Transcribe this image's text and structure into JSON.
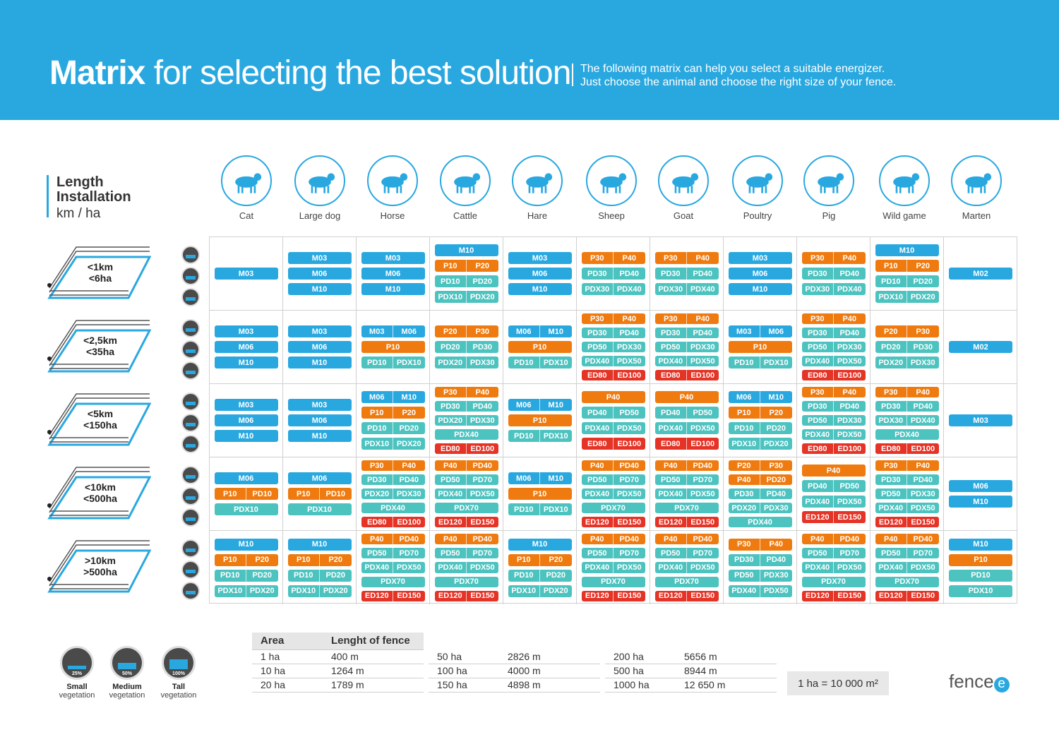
{
  "header": {
    "title_bold": "Matrix",
    "title_rest": " for selecting the best solution",
    "desc_line1": "The following matrix can help you select a suitable energizer.",
    "desc_line2": "Just choose the animal and choose the right size of your fence."
  },
  "length_header": {
    "line1": "Length",
    "line2": "Installation",
    "unit": "km / ha"
  },
  "animals": [
    "Cat",
    "Large dog",
    "Horse",
    "Cattle",
    "Hare",
    "Sheep",
    "Goat",
    "Poultry",
    "Pig",
    "Wild game",
    "Marten"
  ],
  "rows": [
    {
      "km": "<1km",
      "ha": "<6ha"
    },
    {
      "km": "<2,5km",
      "ha": "<35ha"
    },
    {
      "km": "<5km",
      "ha": "<150ha"
    },
    {
      "km": "<10km",
      "ha": "<500ha"
    },
    {
      "km": ">10km",
      "ha": ">500ha"
    }
  ],
  "vegetation_icon_labels": [
    "25%",
    "50%",
    "100%"
  ],
  "colors": {
    "blue": "#29a8e0",
    "orange": "#ef7b10",
    "teal": "#4dc3c0",
    "red": "#e53326"
  },
  "matrix": [
    [
      [
        [
          "b",
          "M03"
        ]
      ],
      [
        [
          "b",
          "M03"
        ],
        [
          "b",
          "M06"
        ],
        [
          "b",
          "M10"
        ]
      ],
      [
        [
          "b",
          "M03"
        ],
        [
          "b",
          "M06"
        ],
        [
          "b",
          "M10"
        ]
      ],
      [
        [
          "b",
          "M10"
        ],
        [
          "o",
          "P10",
          "P20"
        ],
        [
          "t",
          "PD10",
          "PD20"
        ],
        [
          "t",
          "PDX10",
          "PDX20"
        ]
      ],
      [
        [
          "b",
          "M03"
        ],
        [
          "b",
          "M06"
        ],
        [
          "b",
          "M10"
        ]
      ],
      [
        [
          "o",
          "P30",
          "P40"
        ],
        [
          "t",
          "PD30",
          "PD40"
        ],
        [
          "t",
          "PDX30",
          "PDX40"
        ]
      ],
      [
        [
          "o",
          "P30",
          "P40"
        ],
        [
          "t",
          "PD30",
          "PD40"
        ],
        [
          "t",
          "PDX30",
          "PDX40"
        ]
      ],
      [
        [
          "b",
          "M03"
        ],
        [
          "b",
          "M06"
        ],
        [
          "b",
          "M10"
        ]
      ],
      [
        [
          "o",
          "P30",
          "P40"
        ],
        [
          "t",
          "PD30",
          "PD40"
        ],
        [
          "t",
          "PDX30",
          "PDX40"
        ]
      ],
      [
        [
          "b",
          "M10"
        ],
        [
          "o",
          "P10",
          "P20"
        ],
        [
          "t",
          "PD10",
          "PD20"
        ],
        [
          "t",
          "PDX10",
          "PDX20"
        ]
      ],
      [
        [
          "b",
          "M02"
        ]
      ]
    ],
    [
      [
        [
          "b",
          "M03"
        ],
        [
          "b",
          "M06"
        ],
        [
          "b",
          "M10"
        ]
      ],
      [
        [
          "b",
          "M03"
        ],
        [
          "b",
          "M06"
        ],
        [
          "b",
          "M10"
        ]
      ],
      [
        [
          "b",
          "M03",
          "M06"
        ],
        [
          "o",
          "P10"
        ],
        [
          "t",
          "PD10",
          "PDX10"
        ]
      ],
      [
        [
          "o",
          "P20",
          "P30"
        ],
        [
          "t",
          "PD20",
          "PD30"
        ],
        [
          "t",
          "PDX20",
          "PDX30"
        ]
      ],
      [
        [
          "b",
          "M06",
          "M10"
        ],
        [
          "o",
          "P10"
        ],
        [
          "t",
          "PD10",
          "PDX10"
        ]
      ],
      [
        [
          "o",
          "P30",
          "P40"
        ],
        [
          "t",
          "PD30",
          "PD40"
        ],
        [
          "t",
          "PD50",
          "PDX30"
        ],
        [
          "t",
          "PDX40",
          "PDX50"
        ],
        [
          "r",
          "ED80",
          "ED100"
        ]
      ],
      [
        [
          "o",
          "P30",
          "P40"
        ],
        [
          "t",
          "PD30",
          "PD40"
        ],
        [
          "t",
          "PD50",
          "PDX30"
        ],
        [
          "t",
          "PDX40",
          "PDX50"
        ],
        [
          "r",
          "ED80",
          "ED100"
        ]
      ],
      [
        [
          "b",
          "M03",
          "M06"
        ],
        [
          "o",
          "P10"
        ],
        [
          "t",
          "PD10",
          "PDX10"
        ]
      ],
      [
        [
          "o",
          "P30",
          "P40"
        ],
        [
          "t",
          "PD30",
          "PD40"
        ],
        [
          "t",
          "PD50",
          "PDX30"
        ],
        [
          "t",
          "PDX40",
          "PDX50"
        ],
        [
          "r",
          "ED80",
          "ED100"
        ]
      ],
      [
        [
          "o",
          "P20",
          "P30"
        ],
        [
          "t",
          "PD20",
          "PD30"
        ],
        [
          "t",
          "PDX20",
          "PDX30"
        ]
      ],
      [
        [
          "b",
          "M02"
        ]
      ]
    ],
    [
      [
        [
          "b",
          "M03"
        ],
        [
          "b",
          "M06"
        ],
        [
          "b",
          "M10"
        ]
      ],
      [
        [
          "b",
          "M03"
        ],
        [
          "b",
          "M06"
        ],
        [
          "b",
          "M10"
        ]
      ],
      [
        [
          "b",
          "M06",
          "M10"
        ],
        [
          "o",
          "P10",
          "P20"
        ],
        [
          "t",
          "PD10",
          "PD20"
        ],
        [
          "t",
          "PDX10",
          "PDX20"
        ]
      ],
      [
        [
          "o",
          "P30",
          "P40"
        ],
        [
          "t",
          "PD30",
          "PD40"
        ],
        [
          "t",
          "PDX20",
          "PDX30"
        ],
        [
          "t",
          "PDX40"
        ],
        [
          "r",
          "ED80",
          "ED100"
        ]
      ],
      [
        [
          "b",
          "M06",
          "M10"
        ],
        [
          "o",
          "P10"
        ],
        [
          "t",
          "PD10",
          "PDX10"
        ]
      ],
      [
        [
          "o",
          "P40"
        ],
        [
          "t",
          "PD40",
          "PD50"
        ],
        [
          "t",
          "PDX40",
          "PDX50"
        ],
        [
          "r",
          "ED80",
          "ED100"
        ]
      ],
      [
        [
          "o",
          "P40"
        ],
        [
          "t",
          "PD40",
          "PD50"
        ],
        [
          "t",
          "PDX40",
          "PDX50"
        ],
        [
          "r",
          "ED80",
          "ED100"
        ]
      ],
      [
        [
          "b",
          "M06",
          "M10"
        ],
        [
          "o",
          "P10",
          "P20"
        ],
        [
          "t",
          "PD10",
          "PD20"
        ],
        [
          "t",
          "PDX10",
          "PDX20"
        ]
      ],
      [
        [
          "o",
          "P30",
          "P40"
        ],
        [
          "t",
          "PD30",
          "PD40"
        ],
        [
          "t",
          "PD50",
          "PDX30"
        ],
        [
          "t",
          "PDX40",
          "PDX50"
        ],
        [
          "r",
          "ED80",
          "ED100"
        ]
      ],
      [
        [
          "o",
          "P30",
          "P40"
        ],
        [
          "t",
          "PD30",
          "PD40"
        ],
        [
          "t",
          "PDX30",
          "PDX40"
        ],
        [
          "t",
          "PDX40"
        ],
        [
          "r",
          "ED80",
          "ED100"
        ]
      ],
      [
        [
          "b",
          "M03"
        ]
      ]
    ],
    [
      [
        [
          "b",
          "M06"
        ],
        [
          "o",
          "P10",
          "PD10"
        ],
        [
          "t",
          "PDX10"
        ]
      ],
      [
        [
          "b",
          "M06"
        ],
        [
          "o",
          "P10",
          "PD10"
        ],
        [
          "t",
          "PDX10"
        ]
      ],
      [
        [
          "o",
          "P30",
          "P40"
        ],
        [
          "t",
          "PD30",
          "PD40"
        ],
        [
          "t",
          "PDX20",
          "PDX30"
        ],
        [
          "t",
          "PDX40"
        ],
        [
          "r",
          "ED80",
          "ED100"
        ]
      ],
      [
        [
          "o",
          "P40",
          "PD40"
        ],
        [
          "t",
          "PD50",
          "PD70"
        ],
        [
          "t",
          "PDX40",
          "PDX50"
        ],
        [
          "t",
          "PDX70"
        ],
        [
          "r",
          "ED120",
          "ED150"
        ]
      ],
      [
        [
          "b",
          "M06",
          "M10"
        ],
        [
          "o",
          "P10"
        ],
        [
          "t",
          "PD10",
          "PDX10"
        ]
      ],
      [
        [
          "o",
          "P40",
          "PD40"
        ],
        [
          "t",
          "PD50",
          "PD70"
        ],
        [
          "t",
          "PDX40",
          "PDX50"
        ],
        [
          "t",
          "PDX70"
        ],
        [
          "r",
          "ED120",
          "ED150"
        ]
      ],
      [
        [
          "o",
          "P40",
          "PD40"
        ],
        [
          "t",
          "PD50",
          "PD70"
        ],
        [
          "t",
          "PDX40",
          "PDX50"
        ],
        [
          "t",
          "PDX70"
        ],
        [
          "r",
          "ED120",
          "ED150"
        ]
      ],
      [
        [
          "o",
          "P20",
          "P30"
        ],
        [
          "o",
          "P40",
          "PD20"
        ],
        [
          "t",
          "PD30",
          "PD40"
        ],
        [
          "t",
          "PDX20",
          "PDX30"
        ],
        [
          "t",
          "PDX40"
        ]
      ],
      [
        [
          "o",
          "P40"
        ],
        [
          "t",
          "PD40",
          "PD50"
        ],
        [
          "t",
          "PDX40",
          "PDX50"
        ],
        [
          "r",
          "ED120",
          "ED150"
        ]
      ],
      [
        [
          "o",
          "P30",
          "P40"
        ],
        [
          "t",
          "PD30",
          "PD40"
        ],
        [
          "t",
          "PD50",
          "PDX30"
        ],
        [
          "t",
          "PDX40",
          "PDX50"
        ],
        [
          "r",
          "ED120",
          "ED150"
        ]
      ],
      [
        [
          "b",
          "M06"
        ],
        [
          "b",
          "M10"
        ]
      ]
    ],
    [
      [
        [
          "b",
          "M10"
        ],
        [
          "o",
          "P10",
          "P20"
        ],
        [
          "t",
          "PD10",
          "PD20"
        ],
        [
          "t",
          "PDX10",
          "PDX20"
        ]
      ],
      [
        [
          "b",
          "M10"
        ],
        [
          "o",
          "P10",
          "P20"
        ],
        [
          "t",
          "PD10",
          "PD20"
        ],
        [
          "t",
          "PDX10",
          "PDX20"
        ]
      ],
      [
        [
          "o",
          "P40",
          "PD40"
        ],
        [
          "t",
          "PD50",
          "PD70"
        ],
        [
          "t",
          "PDX40",
          "PDX50"
        ],
        [
          "t",
          "PDX70"
        ],
        [
          "r",
          "ED120",
          "ED150"
        ]
      ],
      [
        [
          "o",
          "P40",
          "PD40"
        ],
        [
          "t",
          "PD50",
          "PD70"
        ],
        [
          "t",
          "PDX40",
          "PDX50"
        ],
        [
          "t",
          "PDX70"
        ],
        [
          "r",
          "ED120",
          "ED150"
        ]
      ],
      [
        [
          "b",
          "M10"
        ],
        [
          "o",
          "P10",
          "P20"
        ],
        [
          "t",
          "PD10",
          "PD20"
        ],
        [
          "t",
          "PDX10",
          "PDX20"
        ]
      ],
      [
        [
          "o",
          "P40",
          "PD40"
        ],
        [
          "t",
          "PD50",
          "PD70"
        ],
        [
          "t",
          "PDX40",
          "PDX50"
        ],
        [
          "t",
          "PDX70"
        ],
        [
          "r",
          "ED120",
          "ED150"
        ]
      ],
      [
        [
          "o",
          "P40",
          "PD40"
        ],
        [
          "t",
          "PD50",
          "PD70"
        ],
        [
          "t",
          "PDX40",
          "PDX50"
        ],
        [
          "t",
          "PDX70"
        ],
        [
          "r",
          "ED120",
          "ED150"
        ]
      ],
      [
        [
          "o",
          "P30",
          "P40"
        ],
        [
          "t",
          "PD30",
          "PD40"
        ],
        [
          "t",
          "PD50",
          "PDX30"
        ],
        [
          "t",
          "PDX40",
          "PDX50"
        ]
      ],
      [
        [
          "o",
          "P40",
          "PD40"
        ],
        [
          "t",
          "PD50",
          "PD70"
        ],
        [
          "t",
          "PDX40",
          "PDX50"
        ],
        [
          "t",
          "PDX70"
        ],
        [
          "r",
          "ED120",
          "ED150"
        ]
      ],
      [
        [
          "o",
          "P40",
          "PD40"
        ],
        [
          "t",
          "PD50",
          "PD70"
        ],
        [
          "t",
          "PDX40",
          "PDX50"
        ],
        [
          "t",
          "PDX70"
        ],
        [
          "r",
          "ED120",
          "ED150"
        ]
      ],
      [
        [
          "b",
          "M10"
        ],
        [
          "o",
          "P10"
        ],
        [
          "t",
          "PD10"
        ],
        [
          "t",
          "PDX10"
        ]
      ]
    ]
  ],
  "vegetation_legend": [
    {
      "pct": "25%",
      "name": "Small",
      "sub": "vegetation"
    },
    {
      "pct": "50%",
      "name": "Medium",
      "sub": "vegetation"
    },
    {
      "pct": "100%",
      "name": "Tall",
      "sub": "vegetation"
    }
  ],
  "area_table": {
    "headers": [
      "Area",
      "Lenght of fence"
    ],
    "col1": [
      [
        "1 ha",
        "400 m"
      ],
      [
        "10 ha",
        "1264 m"
      ],
      [
        "20 ha",
        "1789 m"
      ]
    ],
    "col2": [
      [
        "50 ha",
        "2826 m"
      ],
      [
        "100 ha",
        "4000 m"
      ],
      [
        "150 ha",
        "4898 m"
      ]
    ],
    "col3": [
      [
        "200 ha",
        "5656 m"
      ],
      [
        "500 ha",
        "8944 m"
      ],
      [
        "1000 ha",
        "12 650 m"
      ]
    ]
  },
  "ha_note": "1 ha = 10 000 m²",
  "logo": {
    "text": "fence",
    "mark": "e"
  }
}
